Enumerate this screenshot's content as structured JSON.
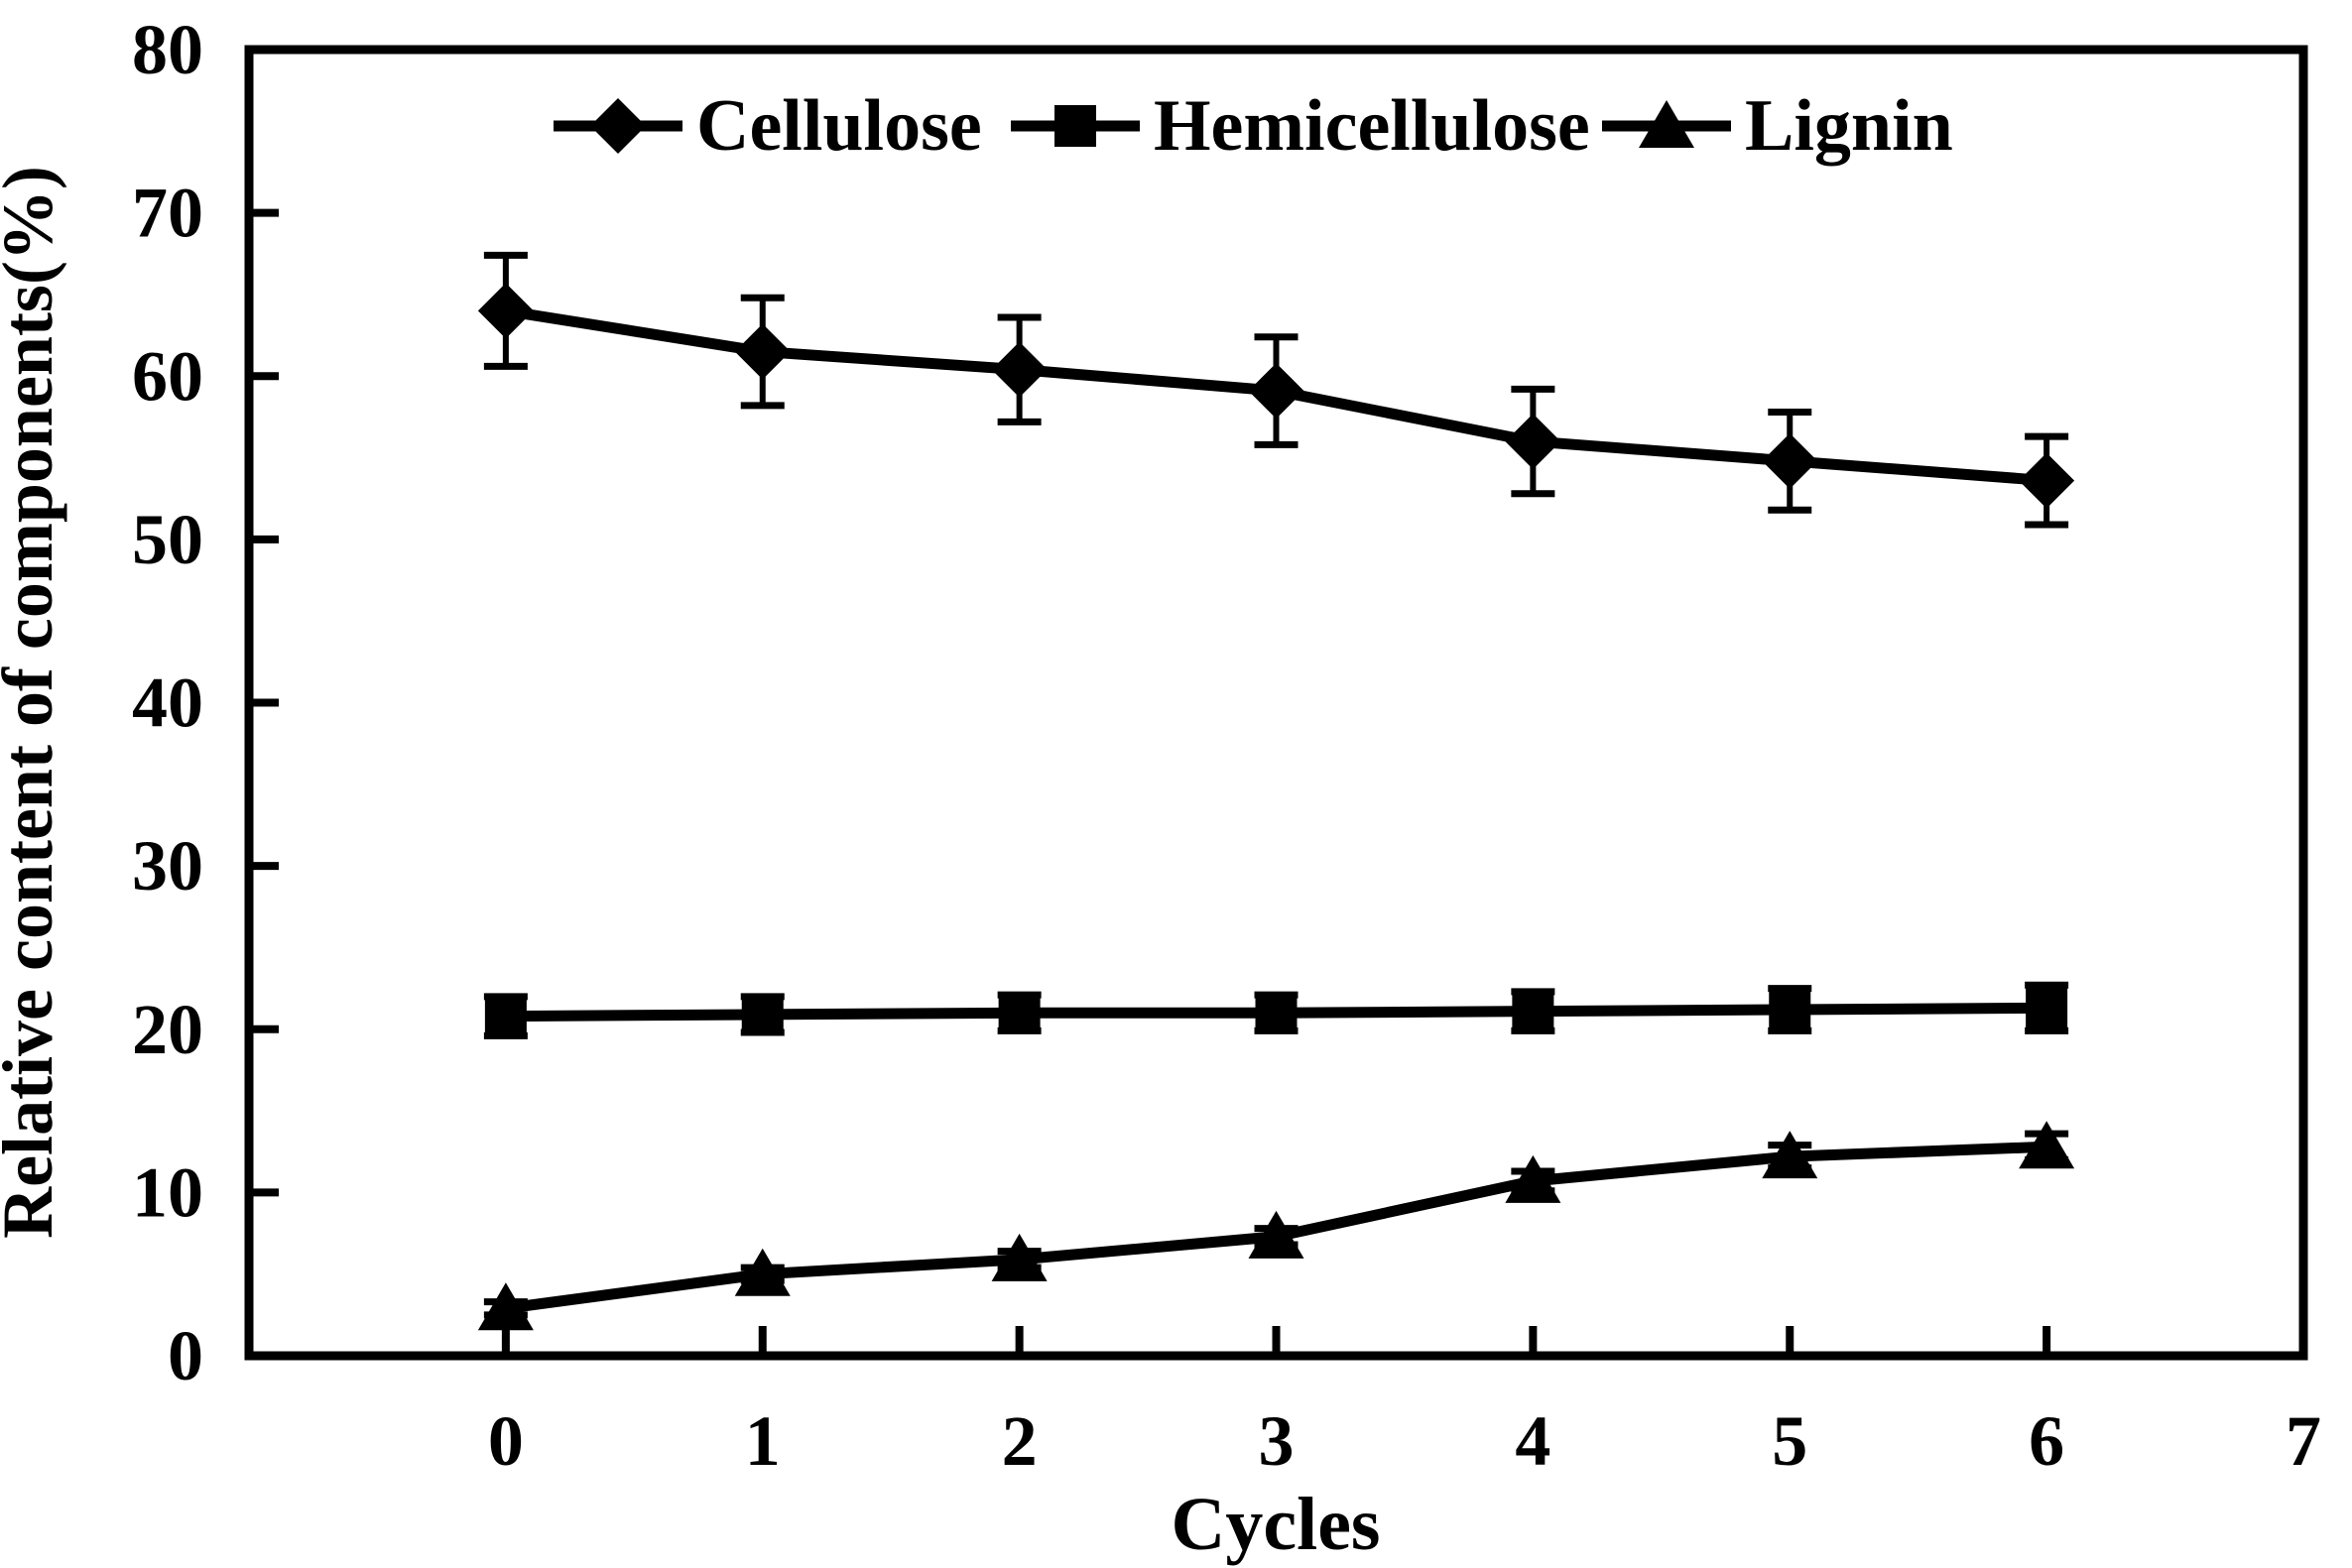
{
  "figure": {
    "background": "#ffffff",
    "ink_color": "#000000"
  },
  "chart_data": {
    "type": "line",
    "title": "",
    "xlabel": "Cycles",
    "ylabel": "Relative content of components(%)",
    "xlim": [
      -1,
      7
    ],
    "ylim": [
      0,
      80
    ],
    "grid": false,
    "legend_position": "top-inside",
    "x_tick_values": [
      0,
      1,
      2,
      3,
      4,
      5,
      6,
      7
    ],
    "x_tick_labels": [
      "0",
      "1",
      "2",
      "3",
      "4",
      "5",
      "6",
      "7"
    ],
    "y_tick_values": [
      0,
      10,
      20,
      30,
      40,
      50,
      60,
      70,
      80
    ],
    "y_tick_labels": [
      "0",
      "10",
      "20",
      "30",
      "40",
      "50",
      "60",
      "70",
      "80"
    ],
    "categories": [
      0,
      1,
      2,
      3,
      4,
      5,
      6
    ],
    "series": [
      {
        "name": "Cellulose",
        "marker": "diamond",
        "color": "#000000",
        "values": [
          64.0,
          61.5,
          60.4,
          59.1,
          56.0,
          54.8,
          53.6
        ],
        "errors": [
          3.4,
          3.3,
          3.2,
          3.3,
          3.2,
          3.0,
          2.7
        ]
      },
      {
        "name": "Hemicellulose",
        "marker": "square",
        "color": "#000000",
        "values": [
          20.8,
          20.9,
          21.0,
          21.0,
          21.1,
          21.2,
          21.3
        ],
        "errors": [
          1.2,
          1.1,
          1.1,
          1.1,
          1.2,
          1.3,
          1.4
        ]
      },
      {
        "name": "Lignin",
        "marker": "triangle",
        "color": "#000000",
        "values": [
          2.9,
          5.0,
          5.9,
          7.3,
          10.7,
          12.2,
          12.8
        ],
        "errors": [
          0.4,
          0.4,
          0.5,
          0.5,
          0.6,
          0.7,
          0.8
        ]
      }
    ]
  }
}
